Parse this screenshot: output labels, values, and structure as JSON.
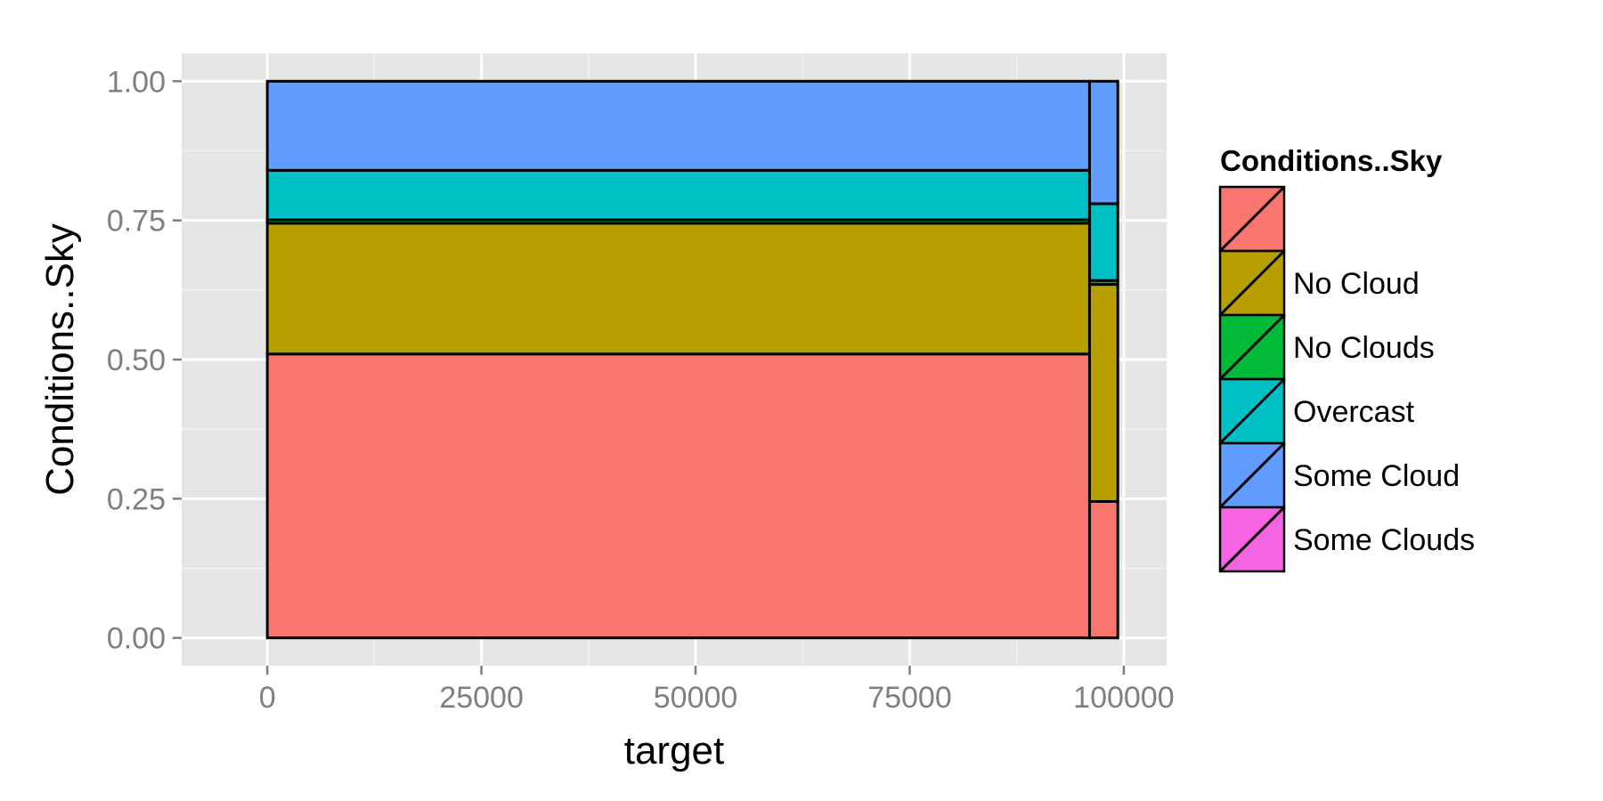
{
  "chart_data": {
    "type": "bar",
    "stacked": "fill",
    "xlabel": "target",
    "ylabel": "Conditions..Sky",
    "xlim": [
      -10000,
      105000
    ],
    "ylim": [
      -0.05,
      1.05
    ],
    "x_ticks": [
      0,
      25000,
      50000,
      75000,
      100000
    ],
    "x_tick_labels": [
      "0",
      "25000",
      "50000",
      "75000",
      "100000"
    ],
    "y_ticks": [
      0,
      0.25,
      0.5,
      0.75,
      1.0
    ],
    "y_tick_labels": [
      "0.00",
      "0.25",
      "0.50",
      "0.75",
      "1.00"
    ],
    "grid": true,
    "legend_position": "right",
    "legend": {
      "title": "Conditions..Sky",
      "entries": [
        {
          "label": "",
          "color": "#F8766D"
        },
        {
          "label": "No Cloud",
          "color": "#B79F00"
        },
        {
          "label": "No Clouds",
          "color": "#00BA38"
        },
        {
          "label": "Overcast",
          "color": "#00BFC4"
        },
        {
          "label": "Some Cloud",
          "color": "#619CFF"
        },
        {
          "label": "Some Clouds",
          "color": "#F564E3"
        }
      ]
    },
    "bars": [
      {
        "x_start": 0,
        "x_end": 96000,
        "segments": [
          {
            "category": "",
            "value": 0.51
          },
          {
            "category": "No Cloud",
            "value": 0.235
          },
          {
            "category": "No Clouds",
            "value": 0.006
          },
          {
            "category": "Overcast",
            "value": 0.089
          },
          {
            "category": "Some Cloud",
            "value": 0.16
          }
        ]
      },
      {
        "x_start": 96000,
        "x_end": 99300,
        "segments": [
          {
            "category": "",
            "value": 0.245
          },
          {
            "category": "No Cloud",
            "value": 0.39
          },
          {
            "category": "No Clouds",
            "value": 0.007
          },
          {
            "category": "Overcast",
            "value": 0.138
          },
          {
            "category": "Some Cloud",
            "value": 0.22
          }
        ]
      }
    ]
  }
}
